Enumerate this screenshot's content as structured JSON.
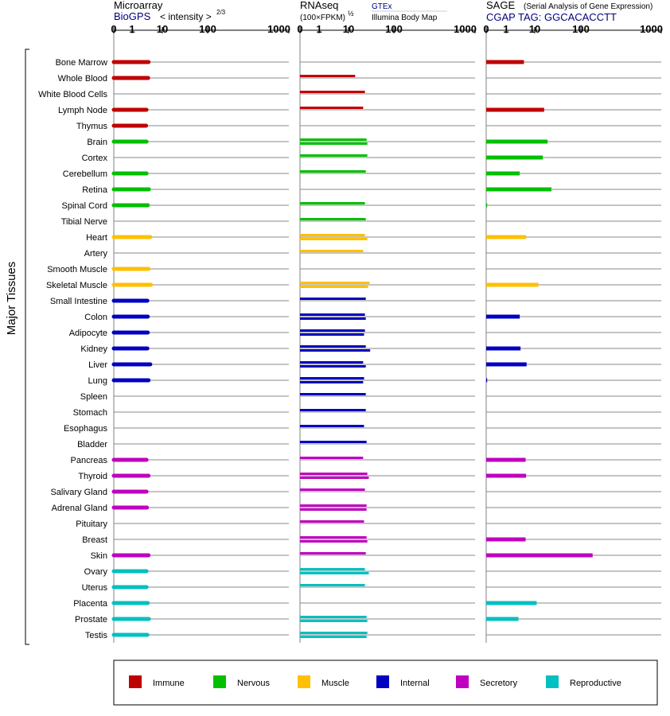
{
  "panels": {
    "microarray": {
      "title": "Microarray",
      "subtitle": "BioGPS",
      "subtitle_color": "#000080",
      "scale_label": "< intensity >",
      "scale_exponent": "2/3"
    },
    "rnaseq": {
      "title": "RNAseq",
      "subtitle": "(100×FPKM)",
      "subtitle_exponent": "½",
      "source_1": "GTEx",
      "source_1_color": "#000080",
      "source_2": "Illumina Body Map"
    },
    "sage": {
      "title": "SAGE",
      "title_note": "(Serial Analysis of Gene Expression)",
      "subtitle": "CGAP TAG: GGCACACCTT",
      "subtitle_color": "#000080"
    }
  },
  "y_axis_label": "Major Tissues",
  "categories": {
    "Immune": "#c00000",
    "Nervous": "#00c000",
    "Muscle": "#ffc000",
    "Internal": "#0000c0",
    "Secretory": "#c000c0",
    "Reproductive": "#00c0c0"
  },
  "legend": [
    {
      "label": "Immune",
      "color": "#c00000"
    },
    {
      "label": "Nervous",
      "color": "#00c000"
    },
    {
      "label": "Muscle",
      "color": "#ffc000"
    },
    {
      "label": "Internal",
      "color": "#0000c0"
    },
    {
      "label": "Secretory",
      "color": "#c000c0"
    },
    {
      "label": "Reproductive",
      "color": "#00c0c0"
    }
  ],
  "chart_data": {
    "type": "bar",
    "orientation": "horizontal",
    "x_scale": "custom log (0, 1, 10, 100, 1000)",
    "x_ticks": [
      "0",
      "1",
      "10",
      "100",
      "1000"
    ],
    "x_range": [
      0,
      1000
    ],
    "tissues": [
      {
        "name": "Bone Marrow",
        "category": "Immune",
        "microarray": 3.5,
        "rnaseq": [],
        "sage": 4.2
      },
      {
        "name": "Whole Blood",
        "category": "Immune",
        "microarray": 3.4,
        "rnaseq": [
          14
        ],
        "sage": null
      },
      {
        "name": "White Blood Cells",
        "category": "Immune",
        "microarray": null,
        "rnaseq": [
          23
        ],
        "sage": null
      },
      {
        "name": "Lymph Node",
        "category": "Immune",
        "microarray": 3.0,
        "rnaseq": [
          21
        ],
        "sage": 16
      },
      {
        "name": "Thymus",
        "category": "Immune",
        "microarray": 2.9,
        "rnaseq": [],
        "sage": null
      },
      {
        "name": "Brain",
        "category": "Nervous",
        "microarray": 3.0,
        "rnaseq": [
          25,
          26
        ],
        "sage": 19
      },
      {
        "name": "Cortex",
        "category": "Nervous",
        "microarray": null,
        "rnaseq": [
          26
        ],
        "sage": 15
      },
      {
        "name": "Cerebellum",
        "category": "Nervous",
        "microarray": 3.0,
        "rnaseq": [
          24
        ],
        "sage": 3.0
      },
      {
        "name": "Retina",
        "category": "Nervous",
        "microarray": 3.6,
        "rnaseq": [],
        "sage": 23
      },
      {
        "name": "Spinal Cord",
        "category": "Nervous",
        "microarray": 3.3,
        "rnaseq": [
          23
        ],
        "sage": 0.05
      },
      {
        "name": "Tibial Nerve",
        "category": "Nervous",
        "microarray": null,
        "rnaseq": [
          24
        ],
        "sage": null
      },
      {
        "name": "Heart",
        "category": "Muscle",
        "microarray": 4.0,
        "rnaseq": [
          23,
          26
        ],
        "sage": 5.0
      },
      {
        "name": "Artery",
        "category": "Muscle",
        "microarray": null,
        "rnaseq": [
          21
        ],
        "sage": null
      },
      {
        "name": "Smooth Muscle",
        "category": "Muscle",
        "microarray": 3.5,
        "rnaseq": [],
        "sage": null
      },
      {
        "name": "Skeletal Muscle",
        "category": "Muscle",
        "microarray": 4.2,
        "rnaseq": [
          29,
          27
        ],
        "sage": 12
      },
      {
        "name": "Small Intestine",
        "category": "Internal",
        "microarray": 3.2,
        "rnaseq": [
          24
        ],
        "sage": null
      },
      {
        "name": "Colon",
        "category": "Internal",
        "microarray": 3.3,
        "rnaseq": [
          23,
          24
        ],
        "sage": 3.0
      },
      {
        "name": "Adipocyte",
        "category": "Internal",
        "microarray": 3.3,
        "rnaseq": [
          23,
          22
        ],
        "sage": null
      },
      {
        "name": "Kidney",
        "category": "Internal",
        "microarray": 3.2,
        "rnaseq": [
          24,
          30
        ],
        "sage": 3.2
      },
      {
        "name": "Liver",
        "category": "Internal",
        "microarray": 4.0,
        "rnaseq": [
          21,
          24
        ],
        "sage": 5.2
      },
      {
        "name": "Lung",
        "category": "Internal",
        "microarray": 3.5,
        "rnaseq": [
          22,
          21
        ],
        "sage": 0.05
      },
      {
        "name": "Spleen",
        "category": "Internal",
        "microarray": null,
        "rnaseq": [
          24
        ],
        "sage": null
      },
      {
        "name": "Stomach",
        "category": "Internal",
        "microarray": null,
        "rnaseq": [
          24
        ],
        "sage": null
      },
      {
        "name": "Esophagus",
        "category": "Internal",
        "microarray": null,
        "rnaseq": [
          22
        ],
        "sage": null
      },
      {
        "name": "Bladder",
        "category": "Internal",
        "microarray": null,
        "rnaseq": [
          25
        ],
        "sage": null
      },
      {
        "name": "Pancreas",
        "category": "Secretory",
        "microarray": 3.0,
        "rnaseq": [
          21
        ],
        "sage": 4.8
      },
      {
        "name": "Thyroid",
        "category": "Secretory",
        "microarray": 3.5,
        "rnaseq": [
          26,
          28
        ],
        "sage": 5.0
      },
      {
        "name": "Salivary Gland",
        "category": "Secretory",
        "microarray": 3.0,
        "rnaseq": [
          23
        ],
        "sage": null
      },
      {
        "name": "Adrenal Gland",
        "category": "Secretory",
        "microarray": 3.1,
        "rnaseq": [
          25,
          25
        ],
        "sage": null
      },
      {
        "name": "Pituitary",
        "category": "Secretory",
        "microarray": null,
        "rnaseq": [
          22
        ],
        "sage": null
      },
      {
        "name": "Breast",
        "category": "Secretory",
        "microarray": null,
        "rnaseq": [
          25,
          26
        ],
        "sage": 4.8
      },
      {
        "name": "Skin",
        "category": "Secretory",
        "microarray": 3.5,
        "rnaseq": [
          24
        ],
        "sage": 140
      },
      {
        "name": "Ovary",
        "category": "Reproductive",
        "microarray": 3.0,
        "rnaseq": [
          23,
          28
        ],
        "sage": null
      },
      {
        "name": "Uterus",
        "category": "Reproductive",
        "microarray": 3.0,
        "rnaseq": [
          23
        ],
        "sage": null
      },
      {
        "name": "Placenta",
        "category": "Reproductive",
        "microarray": 3.3,
        "rnaseq": [],
        "sage": 11
      },
      {
        "name": "Prostate",
        "category": "Reproductive",
        "microarray": 3.6,
        "rnaseq": [
          25,
          26
        ],
        "sage": 2.7
      },
      {
        "name": "Testis",
        "category": "Reproductive",
        "microarray": 3.2,
        "rnaseq": [
          26,
          25
        ],
        "sage": null
      }
    ]
  }
}
